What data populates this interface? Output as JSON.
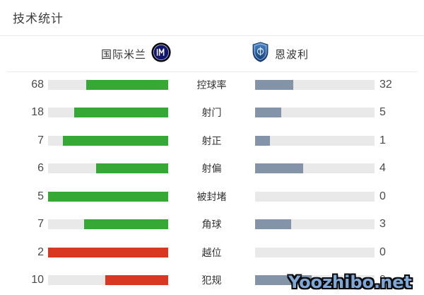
{
  "title": "技术统计",
  "teams": {
    "home": {
      "name": "国际米兰"
    },
    "away": {
      "name": "恩波利"
    }
  },
  "palette": {
    "good": "#36a836",
    "bad": "#d83721",
    "away": "#8494a8",
    "track": "#e9e9e9"
  },
  "stats": [
    {
      "label": "控球率",
      "home": "68",
      "away": "32",
      "home_pct": 68,
      "away_pct": 32,
      "home_type": "good"
    },
    {
      "label": "射门",
      "home": "18",
      "away": "5",
      "home_pct": 78.3,
      "away_pct": 21.7,
      "home_type": "good"
    },
    {
      "label": "射正",
      "home": "7",
      "away": "1",
      "home_pct": 87.5,
      "away_pct": 12.5,
      "home_type": "good"
    },
    {
      "label": "射偏",
      "home": "6",
      "away": "4",
      "home_pct": 60,
      "away_pct": 40,
      "home_type": "good"
    },
    {
      "label": "被封堵",
      "home": "5",
      "away": "0",
      "home_pct": 100,
      "away_pct": 0,
      "home_type": "good"
    },
    {
      "label": "角球",
      "home": "7",
      "away": "3",
      "home_pct": 70,
      "away_pct": 30,
      "home_type": "good"
    },
    {
      "label": "越位",
      "home": "2",
      "away": "0",
      "home_pct": 100,
      "away_pct": 0,
      "home_type": "bad"
    },
    {
      "label": "犯规",
      "home": "10",
      "away": "9",
      "home_pct": 52.6,
      "away_pct": 47.4,
      "home_type": "bad"
    }
  ],
  "watermark": {
    "text": "Yoozhibo.net"
  }
}
